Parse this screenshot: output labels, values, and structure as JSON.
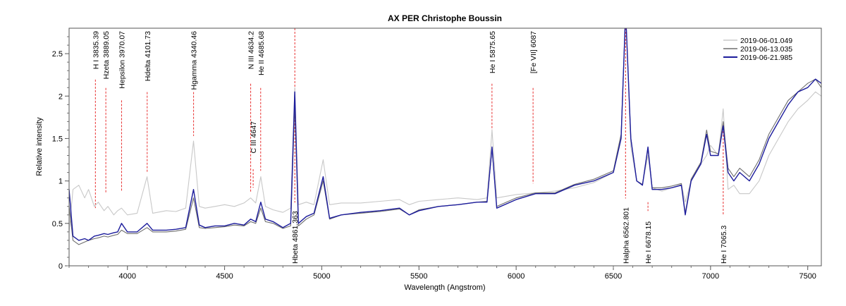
{
  "chart_data": {
    "type": "line",
    "title": "AX PER  Christophe Boussin",
    "xlabel": "Wavelength (Angstrom)",
    "ylabel": "Relative intensity",
    "xlim": [
      3700,
      7570
    ],
    "ylim": [
      0,
      2.8
    ],
    "xticks": [
      4000,
      4500,
      5000,
      5500,
      6000,
      6500,
      7000,
      7500
    ],
    "yticks": [
      0,
      0.5,
      1,
      1.5,
      2,
      2.5
    ],
    "ytick_labels": [
      "0",
      "0.5",
      "1",
      "1.5",
      "2",
      "2.5"
    ],
    "grid": false,
    "legend": "top-right",
    "series": [
      {
        "name": "2019-06-01.049",
        "color": "#c8c8c8",
        "x": [
          3700,
          3720,
          3750,
          3780,
          3800,
          3830,
          3850,
          3880,
          3900,
          3930,
          3950,
          3970,
          4000,
          4050,
          4101,
          4130,
          4200,
          4250,
          4300,
          4340,
          4370,
          4400,
          4450,
          4500,
          4550,
          4600,
          4634,
          4660,
          4686,
          4710,
          4750,
          4800,
          4840,
          4861,
          4880,
          4920,
          4960,
          5007,
          5040,
          5100,
          5200,
          5300,
          5400,
          5450,
          5500,
          5600,
          5700,
          5800,
          5850,
          5876,
          5900,
          6000,
          6100,
          6200,
          6300,
          6400,
          6500,
          6540,
          6563,
          6590,
          6620,
          6650,
          6678,
          6700,
          6750,
          6800,
          6850,
          6870,
          6900,
          6950,
          6980,
          7000,
          7040,
          7065,
          7090,
          7120,
          7150,
          7200,
          7250,
          7300,
          7350,
          7400,
          7450,
          7500,
          7540,
          7570
        ],
        "y": [
          0.4,
          0.9,
          0.95,
          0.8,
          0.9,
          0.7,
          0.75,
          0.65,
          0.7,
          0.6,
          0.65,
          0.68,
          0.6,
          0.62,
          1.05,
          0.62,
          0.65,
          0.64,
          0.68,
          1.47,
          0.7,
          0.68,
          0.7,
          0.72,
          0.7,
          0.74,
          0.8,
          0.74,
          1.05,
          0.7,
          0.66,
          0.63,
          0.68,
          2.1,
          0.72,
          0.75,
          0.72,
          1.25,
          0.72,
          0.74,
          0.74,
          0.76,
          0.78,
          0.72,
          0.76,
          0.78,
          0.8,
          0.78,
          0.8,
          1.6,
          0.8,
          0.84,
          0.86,
          0.88,
          0.92,
          0.98,
          1.1,
          1.5,
          3.0,
          1.4,
          1.0,
          0.96,
          1.3,
          0.92,
          0.88,
          0.92,
          0.96,
          0.75,
          1.0,
          1.2,
          1.3,
          1.42,
          1.3,
          1.85,
          0.9,
          0.95,
          0.85,
          0.85,
          1.0,
          1.3,
          1.5,
          1.7,
          1.85,
          1.95,
          2.05,
          2.0
        ]
      },
      {
        "name": "2019-06-13.035",
        "color": "#6e6e6e",
        "x": [
          3700,
          3720,
          3750,
          3780,
          3800,
          3830,
          3850,
          3880,
          3900,
          3930,
          3950,
          3970,
          4000,
          4050,
          4101,
          4130,
          4200,
          4250,
          4300,
          4340,
          4370,
          4400,
          4450,
          4500,
          4550,
          4600,
          4634,
          4660,
          4686,
          4710,
          4750,
          4800,
          4840,
          4861,
          4880,
          4920,
          4960,
          5007,
          5040,
          5100,
          5200,
          5300,
          5400,
          5450,
          5500,
          5600,
          5700,
          5800,
          5850,
          5876,
          5900,
          6000,
          6100,
          6200,
          6300,
          6400,
          6500,
          6540,
          6563,
          6590,
          6620,
          6650,
          6678,
          6700,
          6750,
          6800,
          6850,
          6870,
          6900,
          6950,
          6980,
          7000,
          7040,
          7065,
          7090,
          7120,
          7150,
          7200,
          7250,
          7300,
          7350,
          7400,
          7450,
          7500,
          7540,
          7570
        ],
        "y": [
          0.7,
          0.3,
          0.25,
          0.28,
          0.3,
          0.32,
          0.33,
          0.35,
          0.34,
          0.36,
          0.37,
          0.42,
          0.38,
          0.38,
          0.45,
          0.4,
          0.4,
          0.41,
          0.43,
          0.8,
          0.45,
          0.44,
          0.45,
          0.46,
          0.48,
          0.47,
          0.52,
          0.5,
          0.68,
          0.52,
          0.5,
          0.44,
          0.47,
          1.9,
          0.47,
          0.55,
          0.6,
          1.0,
          0.55,
          0.6,
          0.62,
          0.64,
          0.67,
          0.6,
          0.66,
          0.7,
          0.72,
          0.75,
          0.76,
          1.38,
          0.7,
          0.8,
          0.86,
          0.86,
          0.96,
          1.02,
          1.12,
          1.55,
          3.0,
          1.5,
          1.0,
          0.96,
          1.38,
          0.92,
          0.92,
          0.94,
          0.97,
          0.62,
          1.02,
          1.22,
          1.6,
          1.35,
          1.32,
          1.7,
          1.15,
          1.05,
          1.15,
          1.05,
          1.25,
          1.55,
          1.75,
          1.95,
          2.05,
          2.15,
          2.2,
          2.1
        ]
      },
      {
        "name": "2019-06-21.985",
        "color": "#1c1c9c",
        "x": [
          3700,
          3720,
          3750,
          3780,
          3800,
          3830,
          3850,
          3880,
          3900,
          3930,
          3950,
          3970,
          4000,
          4050,
          4101,
          4130,
          4200,
          4250,
          4300,
          4340,
          4370,
          4400,
          4450,
          4500,
          4550,
          4600,
          4634,
          4660,
          4686,
          4710,
          4750,
          4800,
          4840,
          4861,
          4880,
          4920,
          4960,
          5007,
          5040,
          5100,
          5200,
          5300,
          5400,
          5450,
          5500,
          5600,
          5700,
          5800,
          5850,
          5876,
          5900,
          6000,
          6100,
          6200,
          6300,
          6400,
          6500,
          6540,
          6563,
          6590,
          6620,
          6650,
          6678,
          6700,
          6750,
          6800,
          6850,
          6870,
          6900,
          6950,
          6980,
          7000,
          7040,
          7065,
          7090,
          7120,
          7150,
          7200,
          7250,
          7300,
          7350,
          7400,
          7450,
          7500,
          7540,
          7570
        ],
        "y": [
          0.9,
          0.35,
          0.3,
          0.32,
          0.3,
          0.35,
          0.36,
          0.38,
          0.37,
          0.39,
          0.4,
          0.5,
          0.4,
          0.4,
          0.5,
          0.42,
          0.42,
          0.43,
          0.45,
          0.9,
          0.48,
          0.45,
          0.47,
          0.47,
          0.5,
          0.48,
          0.55,
          0.52,
          0.75,
          0.55,
          0.52,
          0.45,
          0.5,
          2.05,
          0.5,
          0.58,
          0.62,
          1.05,
          0.56,
          0.6,
          0.63,
          0.65,
          0.68,
          0.6,
          0.65,
          0.7,
          0.72,
          0.75,
          0.75,
          1.4,
          0.68,
          0.78,
          0.85,
          0.85,
          0.95,
          1.0,
          1.1,
          1.5,
          3.0,
          1.5,
          1.0,
          0.95,
          1.4,
          0.9,
          0.9,
          0.92,
          0.95,
          0.6,
          1.0,
          1.2,
          1.55,
          1.3,
          1.3,
          1.65,
          1.1,
          1.0,
          1.1,
          1.0,
          1.2,
          1.5,
          1.7,
          1.9,
          2.05,
          2.1,
          2.2,
          2.15
        ]
      }
    ],
    "line_markers": [
      {
        "label": "H I 3835.39",
        "wavelength": 3835.39,
        "position": "top",
        "line_to": 0.68
      },
      {
        "label": "Hzeta 3889.05",
        "wavelength": 3889.05,
        "position": "top",
        "line_to": 0.85
      },
      {
        "label": "Hepsilon 3970.07",
        "wavelength": 3970.07,
        "position": "top",
        "line_to": 0.87
      },
      {
        "label": "Hdelta 4101.73",
        "wavelength": 4101.73,
        "position": "top",
        "line_to": 1.1
      },
      {
        "label": "Hgamma 4340.46",
        "wavelength": 4340.46,
        "position": "top",
        "line_to": 1.53
      },
      {
        "label": "N III 4634.2",
        "wavelength": 4634.2,
        "position": "top",
        "line_to": 0.87
      },
      {
        "label": "C III 4647",
        "wavelength": 4647,
        "position": "middle",
        "line_to": 0.92
      },
      {
        "label": "He II 4685.68",
        "wavelength": 4685.68,
        "position": "top",
        "line_to": 1.12
      },
      {
        "label": "Hbeta 4861.363",
        "wavelength": 4861.363,
        "position": "bottom",
        "line_to": 2.8
      },
      {
        "label": "He I 5875.65",
        "wavelength": 5875.65,
        "position": "top",
        "line_to": 1.6
      },
      {
        "label": "[Fe VII] 6087",
        "wavelength": 6087,
        "position": "top",
        "line_to": 0.97
      },
      {
        "label": "Halpha 6562.801",
        "wavelength": 6562.801,
        "position": "bottom",
        "line_to": 2.8
      },
      {
        "label": "He I 6678.15",
        "wavelength": 6678.15,
        "position": "bottom",
        "line_to": 0.75
      },
      {
        "label": "He I 7065.3",
        "wavelength": 7065.3,
        "position": "bottom",
        "line_to": 1.67
      }
    ],
    "marker_color": "#e83030"
  }
}
